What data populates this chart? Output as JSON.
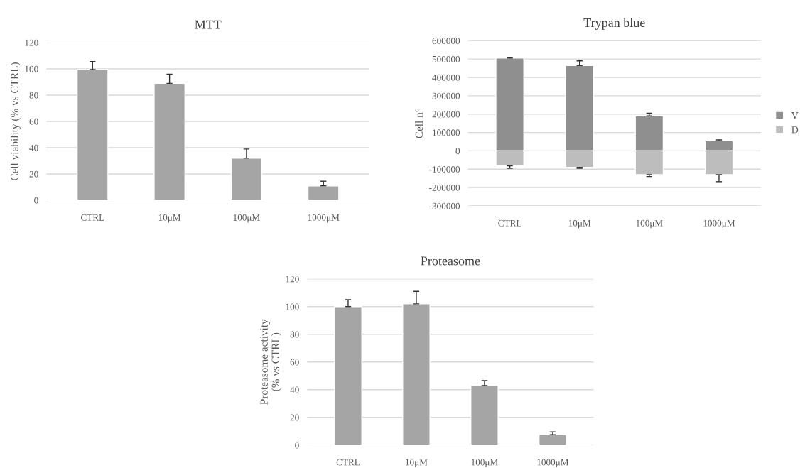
{
  "chart_data": [
    {
      "type": "bar",
      "title": "MTT",
      "ylabel": "Cell viability (% vs CTRL)",
      "categories": [
        "CTRL",
        "10μM",
        "100μM",
        "1000μM"
      ],
      "values": [
        99.5,
        89,
        32,
        11
      ],
      "errors": [
        [
          99.5,
          105.5
        ],
        [
          89,
          96
        ],
        [
          32,
          39
        ],
        [
          11,
          14.5
        ]
      ],
      "color": "#a5a5a5",
      "ylim": [
        0,
        120
      ],
      "yticks": [
        0,
        20,
        40,
        60,
        80,
        100,
        120
      ],
      "grid": "y",
      "legend": false
    },
    {
      "type": "bar",
      "title": "Trypan blue",
      "ylabel": "Cell n°",
      "categories": [
        "CTRL",
        "10μM",
        "100μM",
        "1000μM"
      ],
      "stacked": true,
      "series": [
        {
          "name": "V",
          "color": "#8f8f8f",
          "values": [
            505000,
            465000,
            190000,
            55000
          ],
          "errors": [
            [
              505000,
              510000
            ],
            [
              465000,
              490000
            ],
            [
              190000,
              205000
            ],
            [
              55000,
              60000
            ]
          ]
        },
        {
          "name": "D",
          "color": "#bdbdbd",
          "values": [
            -82000,
            -90000,
            -130000,
            -130000
          ],
          "errors": [
            [
              -95000,
              -82000
            ],
            [
              -95000,
              -90000
            ],
            [
              -140000,
              -130000
            ],
            [
              -168000,
              -130000
            ]
          ]
        }
      ],
      "ylim": [
        -300000,
        600000
      ],
      "yticks": [
        -300000,
        -200000,
        -100000,
        0,
        100000,
        200000,
        300000,
        400000,
        500000,
        600000
      ],
      "grid": "y",
      "legend": "right"
    },
    {
      "type": "bar",
      "title": "Proteasome",
      "ylabel": "Proteasome activity\n(% vs CTRL)",
      "categories": [
        "CTRL",
        "10μM",
        "100μM",
        "1000μM"
      ],
      "values": [
        100,
        102,
        43,
        7.5
      ],
      "errors": [
        [
          100,
          105
        ],
        [
          102,
          111
        ],
        [
          43,
          46.5
        ],
        [
          7.5,
          9.5
        ]
      ],
      "color": "#a5a5a5",
      "ylim": [
        0,
        120
      ],
      "yticks": [
        0,
        20,
        40,
        60,
        80,
        100,
        120
      ],
      "grid": "y",
      "legend": false
    }
  ]
}
